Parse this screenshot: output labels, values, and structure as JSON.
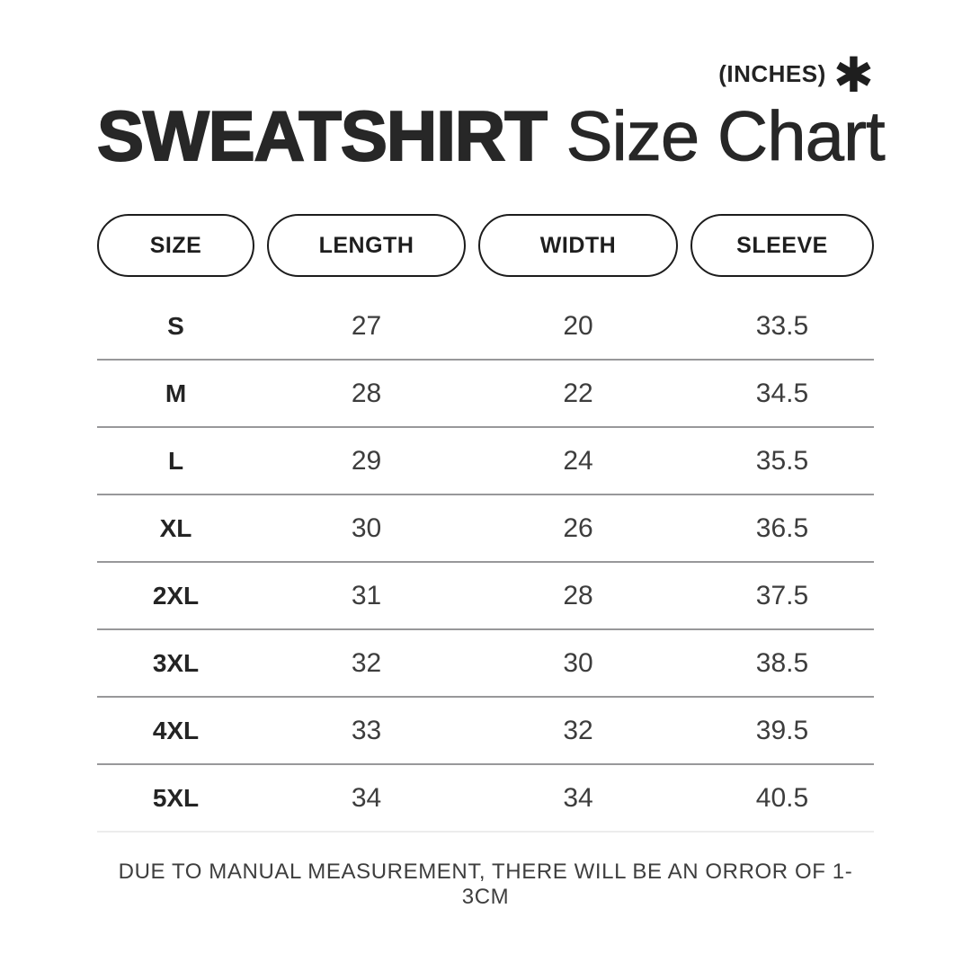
{
  "header": {
    "units_label": "(INCHES)",
    "asterisk_icon": "✱",
    "title_primary": "SWEATSHIRT",
    "title_secondary": "Size Chart"
  },
  "table": {
    "columns": [
      {
        "label": "SIZE"
      },
      {
        "label": "LENGTH"
      },
      {
        "label": "WIDTH"
      },
      {
        "label": "SLEEVE"
      }
    ],
    "rows": [
      {
        "size": "S",
        "length": "27",
        "width": "20",
        "sleeve": "33.5"
      },
      {
        "size": "M",
        "length": "28",
        "width": "22",
        "sleeve": "34.5"
      },
      {
        "size": "L",
        "length": "29",
        "width": "24",
        "sleeve": "35.5"
      },
      {
        "size": "XL",
        "length": "30",
        "width": "26",
        "sleeve": "36.5"
      },
      {
        "size": "2XL",
        "length": "31",
        "width": "28",
        "sleeve": "37.5"
      },
      {
        "size": "3XL",
        "length": "32",
        "width": "30",
        "sleeve": "38.5"
      },
      {
        "size": "4XL",
        "length": "33",
        "width": "32",
        "sleeve": "39.5"
      },
      {
        "size": "5XL",
        "length": "34",
        "width": "34",
        "sleeve": "40.5"
      }
    ]
  },
  "footer": {
    "note": "DUE TO MANUAL MEASUREMENT, THERE WILL BE AN ORROR OF 1-3CM"
  },
  "colors": {
    "background": "#ffffff",
    "title_text": "#272727",
    "row_text": "#3d3d3d",
    "divider": "#98989a",
    "divider_light": "#ececec",
    "pill_border": "#1c1c1c"
  },
  "chart_data": {
    "type": "table",
    "title": "SWEATSHIRT Size Chart",
    "units": "INCHES",
    "columns": [
      "SIZE",
      "LENGTH",
      "WIDTH",
      "SLEEVE"
    ],
    "rows": [
      [
        "S",
        27,
        20,
        33.5
      ],
      [
        "M",
        28,
        22,
        34.5
      ],
      [
        "L",
        29,
        24,
        35.5
      ],
      [
        "XL",
        30,
        26,
        36.5
      ],
      [
        "2XL",
        31,
        28,
        37.5
      ],
      [
        "3XL",
        32,
        30,
        38.5
      ],
      [
        "4XL",
        33,
        32,
        39.5
      ],
      [
        "5XL",
        34,
        34,
        40.5
      ]
    ],
    "note": "DUE TO MANUAL MEASUREMENT, THERE WILL BE AN ORROR OF 1-3CM"
  }
}
